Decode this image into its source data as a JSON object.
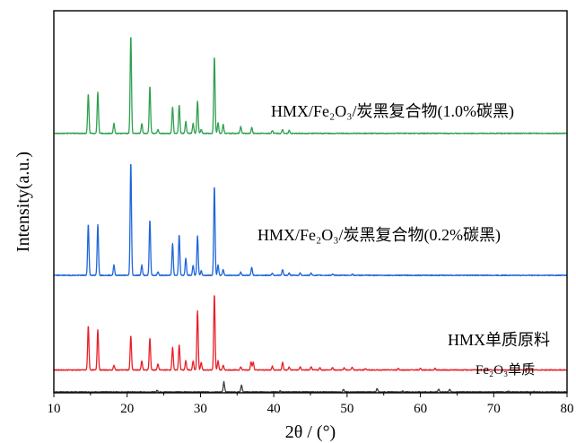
{
  "chart_data": {
    "type": "line",
    "title": "",
    "xlabel": "2θ / (°)",
    "ylabel": "Intensity(a.u.)",
    "xlim": [
      10,
      80
    ],
    "xticks": [
      10,
      20,
      30,
      40,
      50,
      60,
      70,
      80
    ],
    "y_ticks_shown": false,
    "grid": false,
    "legend": "none",
    "series": [
      {
        "name": "Fe₂O₃单质",
        "color": "#404040",
        "baseline": 0.03,
        "scale": 0.35,
        "peaks": [
          [
            24.1,
            0.15
          ],
          [
            33.2,
            1.0
          ],
          [
            35.6,
            0.7
          ],
          [
            40.9,
            0.12
          ],
          [
            49.5,
            0.25
          ],
          [
            54.1,
            0.35
          ],
          [
            57.6,
            0.08
          ],
          [
            62.5,
            0.28
          ],
          [
            64.0,
            0.25
          ],
          [
            72.0,
            0.05
          ],
          [
            75.5,
            0.06
          ]
        ]
      },
      {
        "name": "HMX单质原料",
        "color": "#e8202a",
        "baseline": 0.8,
        "scale": 2.66,
        "peaks": [
          [
            14.7,
            0.58
          ],
          [
            16.0,
            0.53
          ],
          [
            18.2,
            0.06
          ],
          [
            20.5,
            0.45
          ],
          [
            22.0,
            0.12
          ],
          [
            23.1,
            0.42
          ],
          [
            24.2,
            0.08
          ],
          [
            26.2,
            0.3
          ],
          [
            27.1,
            0.33
          ],
          [
            28.0,
            0.12
          ],
          [
            29.0,
            0.12
          ],
          [
            29.6,
            0.78
          ],
          [
            30.1,
            0.1
          ],
          [
            31.9,
            1.0
          ],
          [
            32.4,
            0.12
          ],
          [
            33.1,
            0.06
          ],
          [
            35.5,
            0.04
          ],
          [
            36.9,
            0.11
          ],
          [
            37.2,
            0.1
          ],
          [
            39.8,
            0.05
          ],
          [
            41.2,
            0.1
          ],
          [
            42.1,
            0.04
          ],
          [
            43.6,
            0.04
          ],
          [
            45.1,
            0.04
          ],
          [
            46.3,
            0.03
          ],
          [
            48.0,
            0.03
          ],
          [
            49.6,
            0.03
          ],
          [
            50.7,
            0.04
          ],
          [
            52.5,
            0.02
          ],
          [
            57.0,
            0.02
          ],
          [
            60.0,
            0.02
          ],
          [
            62.0,
            0.02
          ]
        ]
      },
      {
        "name": "HMX/Fe₂O₃/炭黑复合物(0.2%碳黑)",
        "color": "#1f66d8",
        "baseline": 4.12,
        "scale": 3.98,
        "peaks": [
          [
            14.7,
            0.45
          ],
          [
            16.0,
            0.45
          ],
          [
            18.2,
            0.09
          ],
          [
            20.5,
            1.0
          ],
          [
            22.0,
            0.09
          ],
          [
            23.1,
            0.49
          ],
          [
            24.2,
            0.03
          ],
          [
            26.2,
            0.28
          ],
          [
            27.1,
            0.36
          ],
          [
            28.0,
            0.15
          ],
          [
            29.0,
            0.09
          ],
          [
            29.6,
            0.35
          ],
          [
            30.1,
            0.04
          ],
          [
            31.9,
            0.79
          ],
          [
            32.4,
            0.09
          ],
          [
            33.1,
            0.05
          ],
          [
            35.5,
            0.03
          ],
          [
            37.0,
            0.07
          ],
          [
            39.8,
            0.02
          ],
          [
            41.2,
            0.05
          ],
          [
            42.1,
            0.02
          ],
          [
            43.6,
            0.02
          ],
          [
            45.1,
            0.02
          ],
          [
            48.0,
            0.01
          ],
          [
            50.7,
            0.01
          ]
        ]
      },
      {
        "name": "HMX/Fe₂O₃/炭黑复合物(1.0%碳黑)",
        "color": "#2ea04f",
        "baseline": 9.1,
        "scale": 3.43,
        "peaks": [
          [
            14.7,
            0.4
          ],
          [
            16.0,
            0.42
          ],
          [
            18.2,
            0.1
          ],
          [
            20.5,
            1.0
          ],
          [
            22.0,
            0.1
          ],
          [
            23.1,
            0.48
          ],
          [
            24.2,
            0.04
          ],
          [
            26.2,
            0.27
          ],
          [
            27.1,
            0.29
          ],
          [
            28.0,
            0.12
          ],
          [
            29.0,
            0.1
          ],
          [
            29.6,
            0.33
          ],
          [
            30.1,
            0.04
          ],
          [
            31.9,
            0.79
          ],
          [
            32.4,
            0.11
          ],
          [
            33.1,
            0.09
          ],
          [
            35.5,
            0.07
          ],
          [
            37.0,
            0.06
          ],
          [
            39.8,
            0.03
          ],
          [
            41.2,
            0.04
          ],
          [
            42.1,
            0.03
          ]
        ]
      }
    ]
  }
}
